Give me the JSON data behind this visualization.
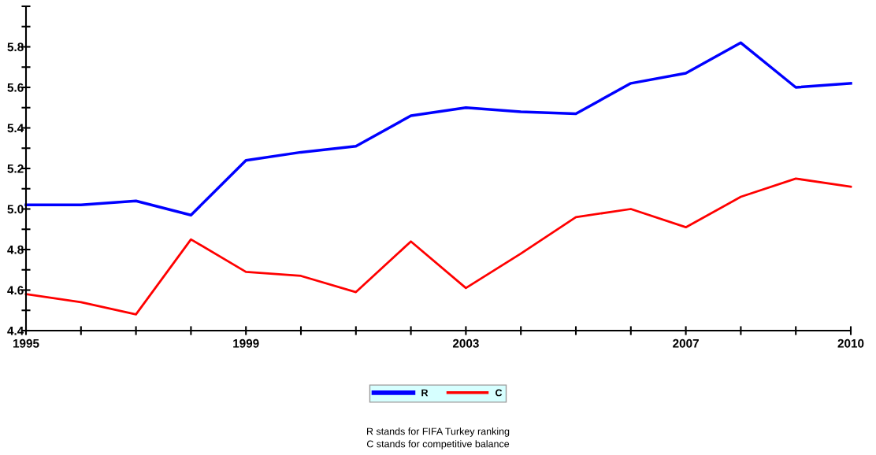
{
  "chart_data": {
    "type": "line",
    "x": [
      1995,
      1996,
      1997,
      1998,
      1999,
      2000,
      2001,
      2002,
      2003,
      2004,
      2005,
      2006,
      2007,
      2008,
      2009,
      2010
    ],
    "series": [
      {
        "name": "R",
        "color": "#0000ff",
        "values": [
          5.02,
          5.02,
          5.04,
          4.97,
          5.24,
          5.28,
          5.31,
          5.46,
          5.5,
          5.48,
          5.47,
          5.62,
          5.67,
          5.82,
          5.6,
          5.62
        ]
      },
      {
        "name": "C",
        "color": "#ff0000",
        "values": [
          4.58,
          4.54,
          4.48,
          4.85,
          4.69,
          4.67,
          4.59,
          4.84,
          4.61,
          4.78,
          4.96,
          5.0,
          4.91,
          5.06,
          5.15,
          5.11
        ]
      }
    ],
    "xlim": [
      1995,
      2010
    ],
    "xticks": [
      1995,
      {
        "value": 1996,
        "label": null
      },
      {
        "value": 1997,
        "label": null
      },
      {
        "value": 1998,
        "label": null
      },
      1999,
      {
        "value": 2000,
        "label": null
      },
      {
        "value": 2001,
        "label": null
      },
      {
        "value": 2002,
        "label": null
      },
      2003,
      {
        "value": 2004,
        "label": null
      },
      {
        "value": 2005,
        "label": null
      },
      {
        "value": 2006,
        "label": null
      },
      2007,
      {
        "value": 2008,
        "label": null
      },
      {
        "value": 2009,
        "label": null
      },
      2010
    ],
    "ylim": [
      4.4,
      6.0
    ],
    "yticks": [
      {
        "value": 4.4,
        "label": "4.4"
      },
      {
        "value": 4.5,
        "label": null
      },
      {
        "value": 4.6,
        "label": "4.6"
      },
      {
        "value": 4.7,
        "label": null
      },
      {
        "value": 4.8,
        "label": "4.8"
      },
      {
        "value": 4.9,
        "label": null
      },
      {
        "value": 5.0,
        "label": "5.0"
      },
      {
        "value": 5.1,
        "label": null
      },
      {
        "value": 5.2,
        "label": "5.2"
      },
      {
        "value": 5.3,
        "label": null
      },
      {
        "value": 5.4,
        "label": "5.4"
      },
      {
        "value": 5.5,
        "label": null
      },
      {
        "value": 5.6,
        "label": "5.6"
      },
      {
        "value": 5.7,
        "label": null
      },
      {
        "value": 5.8,
        "label": "5.8"
      },
      {
        "value": 5.9,
        "label": null
      },
      {
        "value": 6.0,
        "label": null
      }
    ],
    "grid": false,
    "legend": "bottom",
    "marker": "none",
    "line_style": "solid",
    "annotations": [
      "R stands for FIFA Turkey ranking",
      "C stands for competitive balance"
    ]
  }
}
